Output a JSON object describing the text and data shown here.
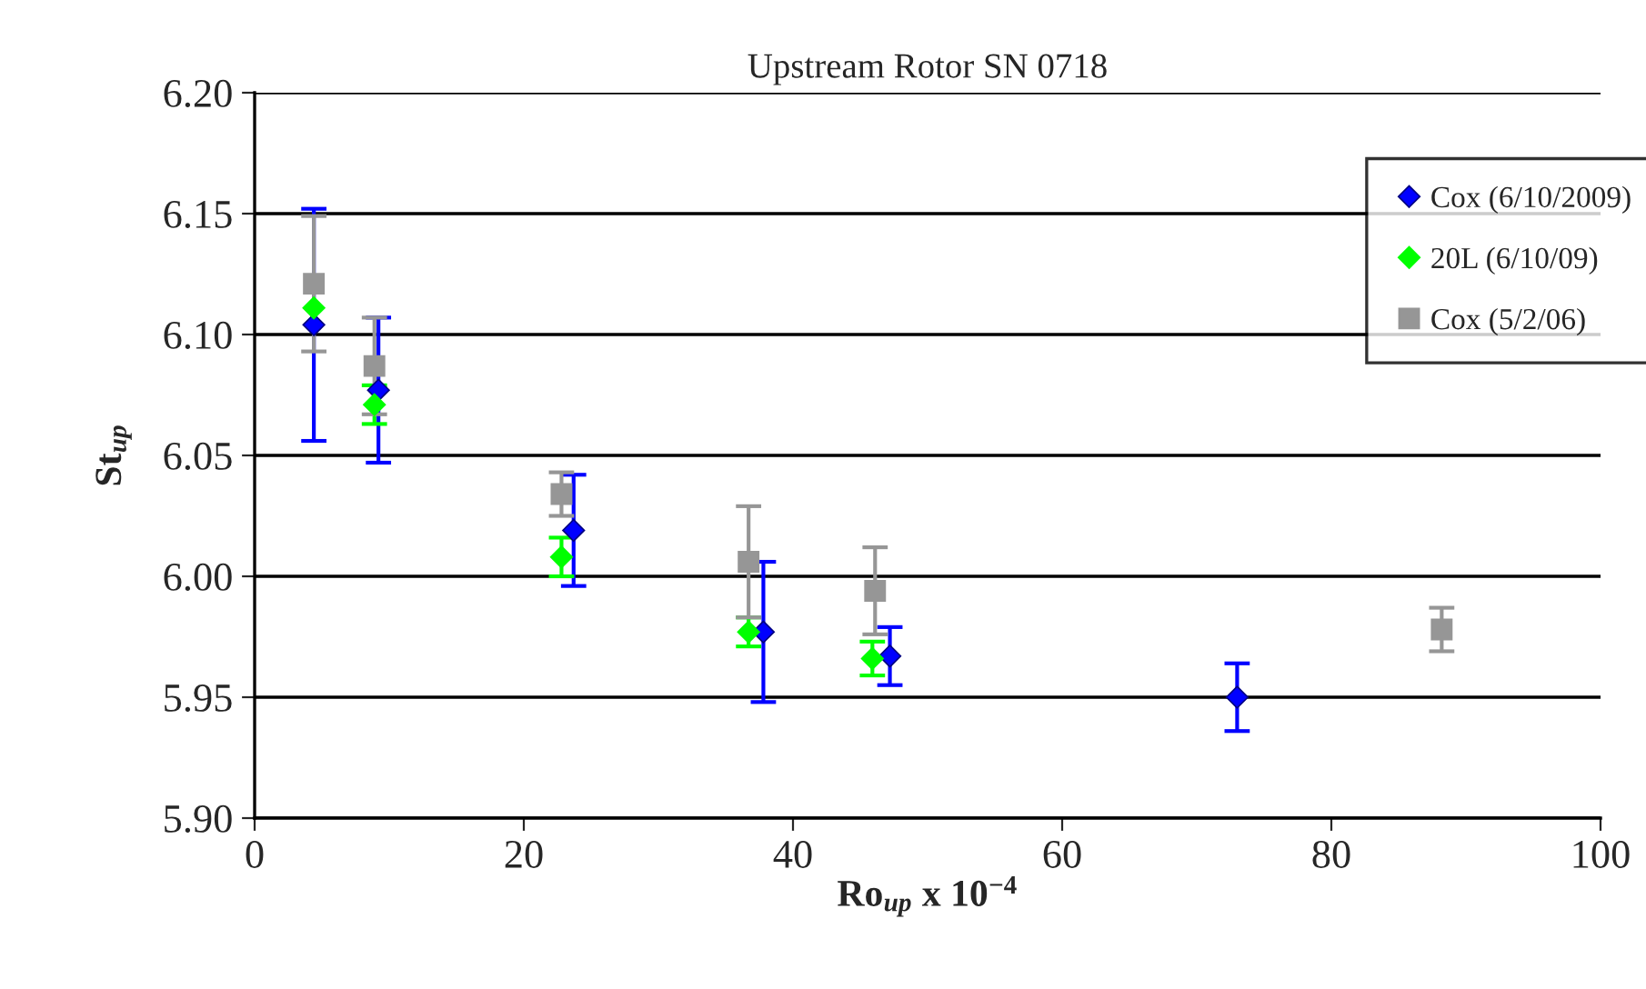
{
  "chart_data": {
    "type": "scatter",
    "title": "Upstream Rotor SN 0718",
    "xlabel": "Ro$_{up}$ x 10$^{−4}$",
    "ylabel": "St$_{up}$",
    "xlim": [
      0,
      100
    ],
    "xticks": [
      0,
      20,
      40,
      60,
      80,
      100
    ],
    "ylim": [
      5.9,
      6.2
    ],
    "yticks": [
      {
        "value": 5.9,
        "label": "5.90"
      },
      {
        "value": 5.95,
        "label": "5.95"
      },
      {
        "value": 6.0,
        "label": "6.00"
      },
      {
        "value": 6.05,
        "label": "6.05"
      },
      {
        "value": 6.1,
        "label": "6.10"
      },
      {
        "value": 6.15,
        "label": "6.15"
      },
      {
        "value": 6.2,
        "label": "6.20"
      }
    ],
    "grid": "y",
    "legend": "top right",
    "series": [
      {
        "name": "Cox (6/10/2009)",
        "color": "#0000ff",
        "marker": "diamond",
        "x": [
          4.4,
          9.2,
          23.7,
          37.8,
          47.2,
          73.0
        ],
        "values": [
          6.104,
          6.077,
          6.019,
          5.977,
          5.967,
          5.95
        ],
        "errors": [
          0.048,
          0.03,
          0.023,
          0.029,
          0.012,
          0.014
        ]
      },
      {
        "name": "20L (6/10/09)",
        "color": "#00ff00",
        "marker": "diamond",
        "x": [
          4.4,
          8.9,
          22.8,
          36.7,
          45.9
        ],
        "values": [
          6.111,
          6.071,
          6.008,
          5.977,
          5.966
        ],
        "errors": [
          null,
          0.008,
          0.008,
          0.006,
          0.007
        ]
      },
      {
        "name": "Cox (5/2/06)",
        "color": "#969696",
        "marker": "square",
        "x": [
          4.4,
          8.9,
          22.8,
          36.7,
          46.1,
          88.2
        ],
        "values": [
          6.121,
          6.087,
          6.034,
          6.006,
          5.994,
          5.978
        ],
        "errors": [
          0.028,
          0.02,
          0.009,
          0.023,
          0.018,
          0.009
        ]
      }
    ]
  }
}
